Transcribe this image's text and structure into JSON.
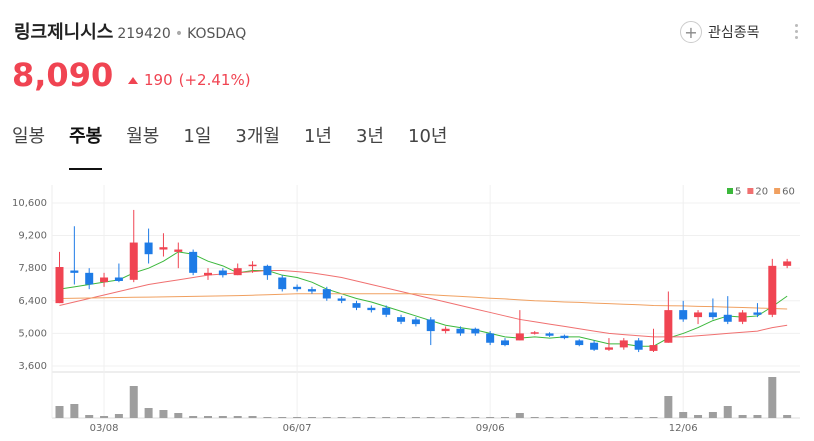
{
  "header": {
    "name": "링크제니시스",
    "code": "219420",
    "market": "KOSDAQ",
    "watch": "관심종목",
    "price": "8,090",
    "change": "190",
    "change_pct": "(+2.41%)"
  },
  "tabs": [
    "일봉",
    "주봉",
    "월봉",
    "1일",
    "3개월",
    "1년",
    "3년",
    "10년"
  ],
  "active_tab": 1,
  "chart_data": {
    "type": "candlestick",
    "categories": [
      null,
      null,
      null,
      "03/08",
      null,
      null,
      null,
      null,
      null,
      null,
      null,
      null,
      null,
      null,
      null,
      null,
      "06/07",
      null,
      null,
      null,
      null,
      null,
      null,
      null,
      null,
      null,
      null,
      null,
      null,
      "09/06",
      null,
      null,
      null,
      null,
      null,
      null,
      null,
      null,
      null,
      null,
      null,
      null,
      "12/06",
      null,
      null,
      null,
      null,
      null,
      null,
      null
    ],
    "open": [
      6300,
      7700,
      7600,
      7200,
      7400,
      7300,
      8900,
      8600,
      8500,
      8500,
      7500,
      7700,
      7500,
      7900,
      7900,
      7400,
      7000,
      6900,
      6900,
      6500,
      6300,
      6100,
      6100,
      5700,
      5600,
      5600,
      5100,
      5200,
      5200,
      5000,
      4700,
      4700,
      5000,
      5000,
      4900,
      4700,
      4600,
      4300,
      4400,
      4700,
      4250,
      4600,
      6000,
      5700,
      5900,
      5800,
      5500,
      5900,
      5800,
      7900
    ],
    "high": [
      8500,
      9600,
      7800,
      7600,
      8000,
      10300,
      9500,
      9300,
      8900,
      8600,
      7800,
      7800,
      8000,
      8100,
      7950,
      7500,
      7100,
      7000,
      7000,
      6600,
      6400,
      6200,
      6200,
      5800,
      5700,
      5700,
      5300,
      5300,
      5250,
      5100,
      4800,
      6000,
      5100,
      5050,
      4950,
      4750,
      4700,
      4800,
      4800,
      4800,
      5200,
      6800,
      6400,
      6000,
      6500,
      6600,
      6000,
      6300,
      8200,
      8200
    ],
    "low": [
      6300,
      7100,
      6900,
      7000,
      7200,
      7200,
      8000,
      8300,
      7800,
      7500,
      7300,
      7400,
      7500,
      7600,
      7300,
      6800,
      6800,
      6700,
      6400,
      6300,
      6000,
      5900,
      5700,
      5400,
      5300,
      4500,
      5000,
      4900,
      4900,
      4500,
      4450,
      4700,
      4950,
      4850,
      4750,
      4450,
      4250,
      4250,
      4300,
      4200,
      4200,
      4600,
      5500,
      5400,
      5600,
      5400,
      5400,
      5700,
      5700,
      7800
    ],
    "close": [
      7850,
      7600,
      7100,
      7400,
      7250,
      8900,
      8400,
      8700,
      8600,
      7600,
      7600,
      7500,
      7800,
      7950,
      7500,
      6900,
      6900,
      6800,
      6500,
      6400,
      6100,
      6000,
      5800,
      5500,
      5400,
      5100,
      5200,
      5000,
      5000,
      4600,
      4500,
      5000,
      5050,
      4900,
      4800,
      4500,
      4300,
      4400,
      4700,
      4300,
      4500,
      6000,
      5600,
      5900,
      5700,
      5500,
      5900,
      5800,
      7900,
      8090
    ],
    "up_color": "#f04452",
    "down_color": "#1e7be6",
    "volume": [
      12,
      14,
      3,
      2,
      4,
      32,
      10,
      8,
      5,
      2,
      2,
      2,
      2,
      2,
      1,
      1,
      1,
      1,
      1,
      1,
      1,
      1,
      1,
      1,
      1,
      1,
      1,
      1,
      1,
      1,
      1,
      5,
      1,
      1,
      1,
      1,
      1,
      1,
      1,
      1,
      1,
      22,
      6,
      3,
      6,
      12,
      3,
      3,
      41,
      3
    ],
    "volume_color": "#9e9e9e",
    "series": [
      {
        "name": "5",
        "color": "#3cb83c",
        "values": [
          6900,
          7000,
          7100,
          7200,
          7300,
          7600,
          7800,
          8100,
          8500,
          8400,
          8100,
          7900,
          7600,
          7700,
          7700,
          7500,
          7400,
          7200,
          6900,
          6700,
          6500,
          6350,
          6150,
          5950,
          5750,
          5550,
          5350,
          5250,
          5150,
          5000,
          4850,
          4800,
          4850,
          4800,
          4850,
          4850,
          4700,
          4550,
          4550,
          4450,
          4450,
          4800,
          5000,
          5250,
          5550,
          5750,
          5700,
          5750,
          6150,
          6600
        ]
      },
      {
        "name": "20",
        "color": "#f07070",
        "values": [
          6200,
          6350,
          6500,
          6650,
          6800,
          6950,
          7100,
          7200,
          7300,
          7400,
          7500,
          7550,
          7600,
          7650,
          7700,
          7700,
          7650,
          7600,
          7500,
          7400,
          7250,
          7100,
          6950,
          6800,
          6650,
          6500,
          6350,
          6200,
          6050,
          5900,
          5750,
          5600,
          5500,
          5400,
          5300,
          5200,
          5100,
          5000,
          4950,
          4900,
          4850,
          4850,
          4850,
          4900,
          4950,
          5000,
          5050,
          5100,
          5250,
          5350
        ]
      },
      {
        "name": "60",
        "color": "#f0a060",
        "values": [
          6500,
          6510,
          6520,
          6530,
          6540,
          6550,
          6560,
          6570,
          6580,
          6590,
          6600,
          6610,
          6620,
          6640,
          6660,
          6680,
          6700,
          6700,
          6700,
          6700,
          6700,
          6700,
          6700,
          6700,
          6700,
          6660,
          6620,
          6590,
          6550,
          6510,
          6480,
          6440,
          6400,
          6380,
          6350,
          6330,
          6300,
          6280,
          6250,
          6230,
          6200,
          6190,
          6180,
          6160,
          6150,
          6130,
          6110,
          6090,
          6070,
          6050
        ]
      }
    ],
    "ylim": [
      3430,
      11370
    ],
    "yticks": [
      {
        "value": 10600,
        "label": "10,600"
      },
      {
        "value": 9200,
        "label": "9,200"
      },
      {
        "value": 7800,
        "label": "7,800"
      },
      {
        "value": 6400,
        "label": "6,400"
      },
      {
        "value": 5000,
        "label": "5,000"
      },
      {
        "value": 3600,
        "label": "3,600"
      }
    ],
    "grid": true
  }
}
